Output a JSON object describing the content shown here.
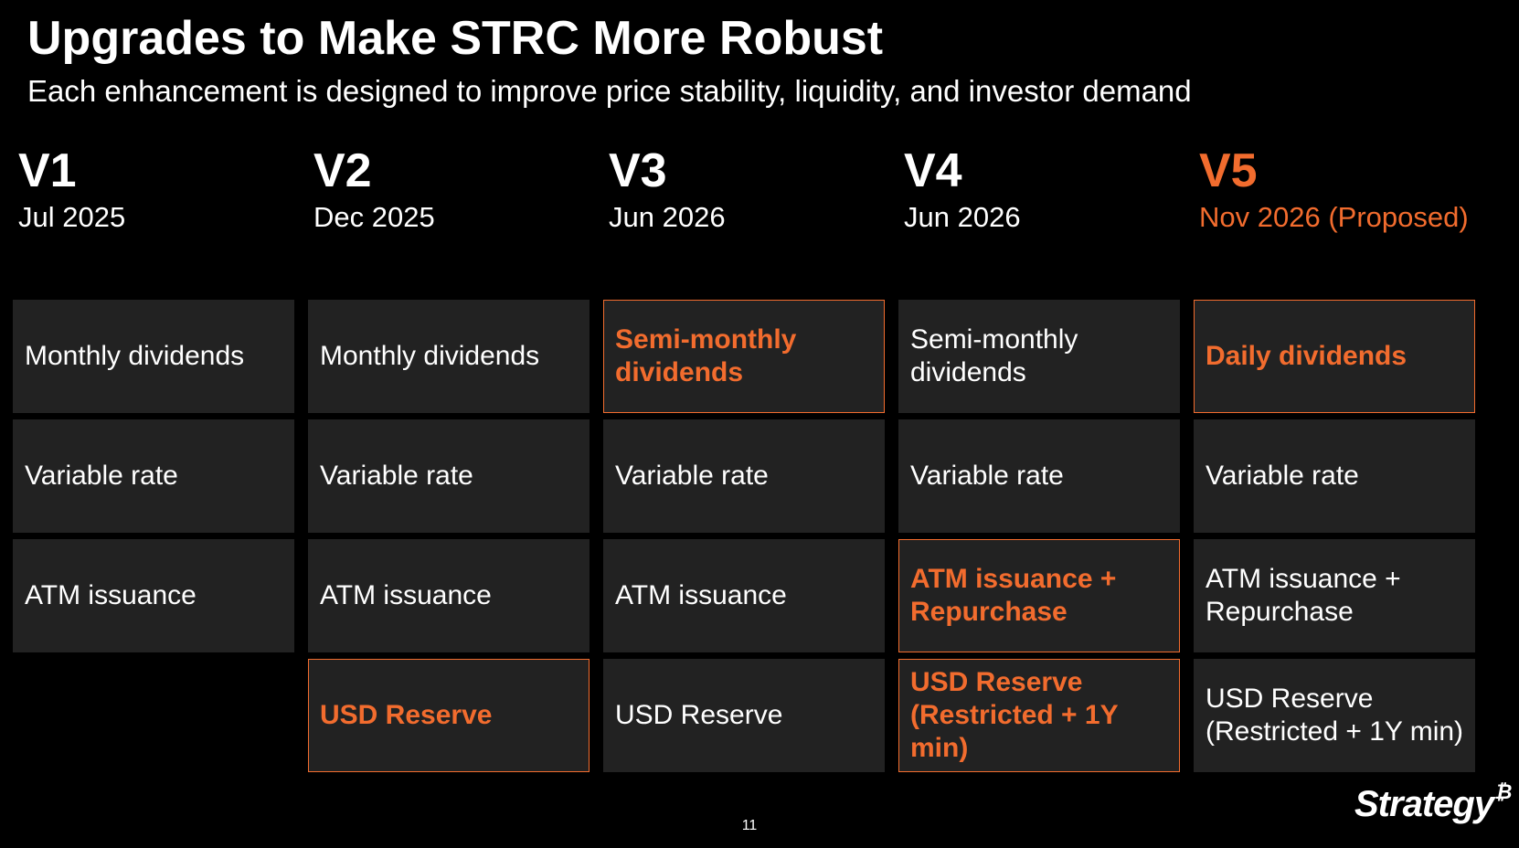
{
  "header": {
    "title": "Upgrades to Make STRC More Robust",
    "subtitle": "Each enhancement is designed to improve price stability, liquidity, and investor demand"
  },
  "colors": {
    "accent": "#f26c2e",
    "cell_bg": "#222222",
    "background": "#000000",
    "text": "#ffffff"
  },
  "columns": [
    {
      "version": "V1",
      "date": "Jul 2025",
      "highlight": false,
      "cells": [
        {
          "text": "Monthly dividends",
          "highlight": false
        },
        {
          "text": "Variable rate",
          "highlight": false
        },
        {
          "text": "ATM issuance",
          "highlight": false
        }
      ]
    },
    {
      "version": "V2",
      "date": "Dec 2025",
      "highlight": false,
      "cells": [
        {
          "text": "Monthly dividends",
          "highlight": false
        },
        {
          "text": "Variable rate",
          "highlight": false
        },
        {
          "text": "ATM issuance",
          "highlight": false
        },
        {
          "text": "USD Reserve",
          "highlight": true
        }
      ]
    },
    {
      "version": "V3",
      "date": "Jun 2026",
      "highlight": false,
      "cells": [
        {
          "text": "Semi-monthly dividends",
          "highlight": true
        },
        {
          "text": "Variable rate",
          "highlight": false
        },
        {
          "text": "ATM issuance",
          "highlight": false
        },
        {
          "text": "USD Reserve",
          "highlight": false
        }
      ]
    },
    {
      "version": "V4",
      "date": "Jun 2026",
      "highlight": false,
      "cells": [
        {
          "text": "Semi-monthly dividends",
          "highlight": false
        },
        {
          "text": "Variable rate",
          "highlight": false
        },
        {
          "text": "ATM issuance + Repurchase",
          "highlight": true
        },
        {
          "text": "USD Reserve (Restricted + 1Y min)",
          "highlight": true
        }
      ]
    },
    {
      "version": "V5",
      "date": "Nov 2026 (Proposed)",
      "highlight": true,
      "cells": [
        {
          "text": "Daily dividends",
          "highlight": true
        },
        {
          "text": "Variable rate",
          "highlight": false
        },
        {
          "text": "ATM issuance + Repurchase",
          "highlight": false
        },
        {
          "text": "USD Reserve (Restricted + 1Y min)",
          "highlight": false
        }
      ]
    }
  ],
  "footer": {
    "page_number": "11",
    "logo_text": "Strategy",
    "logo_symbol": "₿"
  }
}
